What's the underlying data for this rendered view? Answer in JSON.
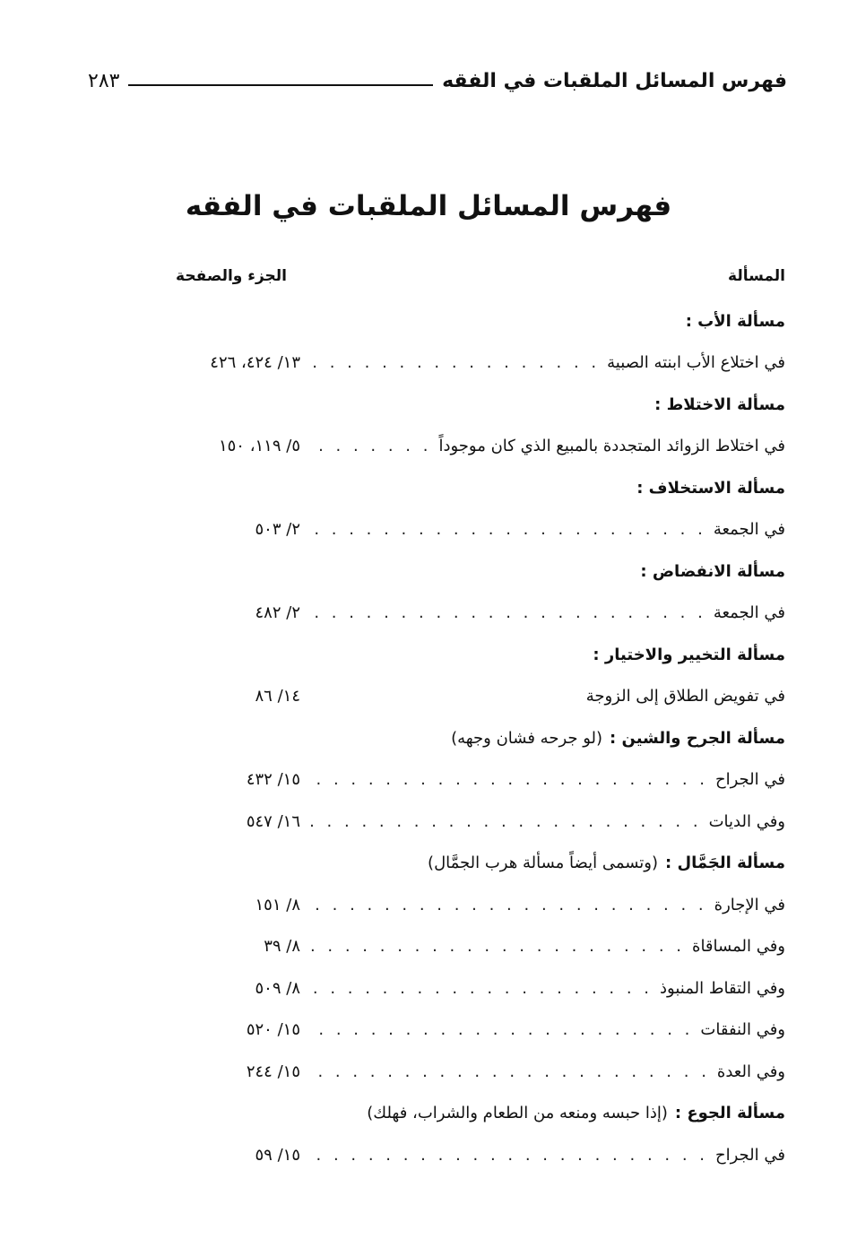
{
  "header": {
    "running_title": "فهرس المسائل الملقبات في الفقه",
    "page_number": "٢٨٣"
  },
  "title": "فهرس المسائل الملقبات في الفقه",
  "columns": {
    "issue": "المسألة",
    "reference": "الجزء والصفحة"
  },
  "rows": [
    {
      "type": "section",
      "text": "مسألة الأب :"
    },
    {
      "type": "entry",
      "text": "في اختلاع الأب ابنته الصبية",
      "dots": true,
      "ref": "١٣/ ٤٢٤، ٤٢٦"
    },
    {
      "type": "section",
      "text": "مسألة الاختلاط :"
    },
    {
      "type": "entry",
      "text": "في اختلاط الزوائد المتجددة بالمبيع الذي كان موجوداً",
      "dots": true,
      "ref": "٥/ ١١٩، ١٥٠"
    },
    {
      "type": "section",
      "text": "مسألة الاستخلاف :"
    },
    {
      "type": "entry",
      "text": "في الجمعة",
      "dots": true,
      "ref": "٢/ ٥٠٣"
    },
    {
      "type": "section",
      "text": "مسألة الانفضاض :"
    },
    {
      "type": "entry",
      "text": "في الجمعة",
      "dots": true,
      "ref": "٢/ ٤٨٢"
    },
    {
      "type": "section",
      "text": "مسألة التخيير والاختيار :"
    },
    {
      "type": "entry",
      "text": "في تفويض الطلاق إلى الزوجة",
      "dots": false,
      "ref": "١٤/ ٨٦"
    },
    {
      "type": "section",
      "text": "مسألة الجرح والشين :",
      "note": "(لو جرحه فشان وجهه)"
    },
    {
      "type": "entry",
      "text": "في الجراح",
      "dots": true,
      "ref": "١٥/ ٤٣٢"
    },
    {
      "type": "entry",
      "text": "وفي الديات",
      "dots": true,
      "ref": "١٦/ ٥٤٧"
    },
    {
      "type": "section",
      "text": "مسألة الجَمَّال :",
      "note": "(وتسمى أيضاً مسألة هرب الجمَّال)"
    },
    {
      "type": "entry",
      "text": "في الإجارة",
      "dots": true,
      "ref": "٨/ ١٥١"
    },
    {
      "type": "entry",
      "text": "وفي المساقاة",
      "dots": true,
      "ref": "٨/ ٣٩"
    },
    {
      "type": "entry",
      "text": "وفي التقاط المنبوذ",
      "dots": true,
      "ref": "٨/ ٥٠٩"
    },
    {
      "type": "entry",
      "text": "وفي النفقات",
      "dots": true,
      "ref": "١٥/ ٥٢٠"
    },
    {
      "type": "entry",
      "text": "وفي العدة",
      "dots": true,
      "ref": "١٥/ ٢٤٤"
    },
    {
      "type": "section",
      "text": "مسألة الجوع :",
      "note": "(إذا حبسه ومنعه من الطعام والشراب، فهلك)"
    },
    {
      "type": "entry",
      "text": "في الجراح",
      "dots": true,
      "ref": "١٥/ ٥٩"
    }
  ]
}
